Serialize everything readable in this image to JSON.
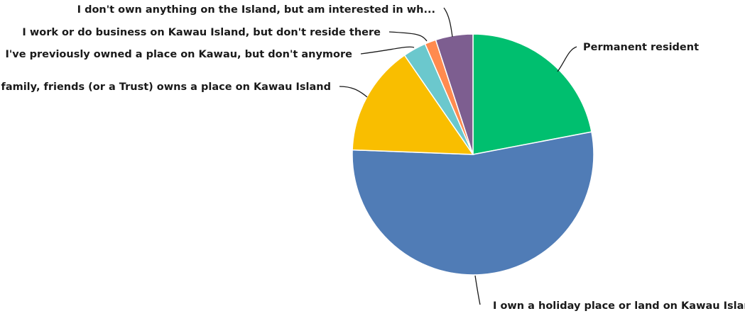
{
  "chart_data": {
    "type": "pie",
    "title": "",
    "legend": "none",
    "start_angle_deg": 0,
    "direction": "clockwise",
    "slices": [
      {
        "label": "Permanent resident",
        "value": 22.0,
        "color": "#00bf6f"
      },
      {
        "label": "I own a holiday place or land on Kawau Island",
        "value": 53.6,
        "color": "#507cb6"
      },
      {
        "label": "My family, friends (or a Trust) owns a place on Kawau Island",
        "value": 14.8,
        "color": "#f9be00"
      },
      {
        "label": "I've previously owned a place on Kawau, but don't anymore",
        "value": 3.1,
        "color": "#6bc8cd"
      },
      {
        "label": "I work or do business on Kawau Island, but don't reside there",
        "value": 1.5,
        "color": "#ff8b4f"
      },
      {
        "label": "I don't own anything on the Island, but am interested in wh...",
        "value": 5.0,
        "color": "#7d5e90"
      }
    ]
  }
}
